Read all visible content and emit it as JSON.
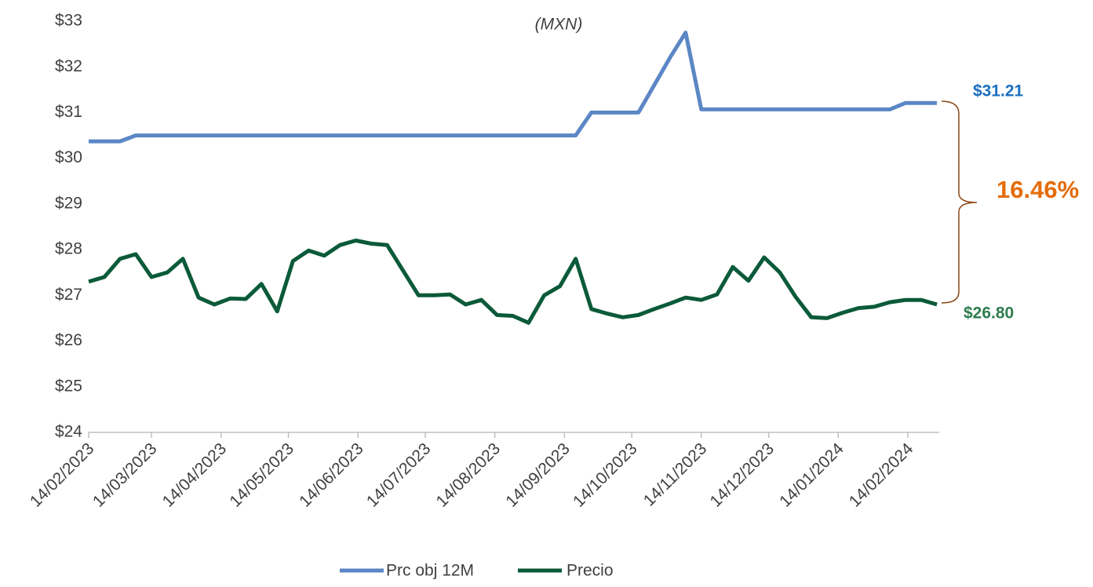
{
  "chart_data": {
    "type": "line",
    "title": "(MXN)",
    "x": [
      "2023-02-14",
      "2023-02-21",
      "2023-02-28",
      "2023-03-07",
      "2023-03-14",
      "2023-03-21",
      "2023-03-28",
      "2023-04-04",
      "2023-04-11",
      "2023-04-18",
      "2023-04-25",
      "2023-05-02",
      "2023-05-09",
      "2023-05-16",
      "2023-05-23",
      "2023-05-30",
      "2023-06-06",
      "2023-06-13",
      "2023-06-20",
      "2023-06-27",
      "2023-07-04",
      "2023-07-11",
      "2023-07-18",
      "2023-07-25",
      "2023-08-01",
      "2023-08-08",
      "2023-08-15",
      "2023-08-22",
      "2023-08-29",
      "2023-09-05",
      "2023-09-12",
      "2023-09-19",
      "2023-09-26",
      "2023-10-03",
      "2023-10-10",
      "2023-10-17",
      "2023-10-24",
      "2023-10-31",
      "2023-11-07",
      "2023-11-14",
      "2023-11-21",
      "2023-11-28",
      "2023-12-05",
      "2023-12-12",
      "2023-12-19",
      "2023-12-26",
      "2024-01-02",
      "2024-01-09",
      "2024-01-16",
      "2024-01-23",
      "2024-01-30",
      "2024-02-06",
      "2024-02-13",
      "2024-02-20",
      "2024-02-27"
    ],
    "series": [
      {
        "name": "Prc obj 12M",
        "color": "#5b87c5",
        "values": [
          30.37,
          30.37,
          30.37,
          30.5,
          30.5,
          30.5,
          30.5,
          30.5,
          30.5,
          30.5,
          30.5,
          30.5,
          30.5,
          30.5,
          30.5,
          30.5,
          30.5,
          30.5,
          30.5,
          30.5,
          30.5,
          30.5,
          30.5,
          30.5,
          30.5,
          30.5,
          30.5,
          30.5,
          30.5,
          30.5,
          30.5,
          30.5,
          31.0,
          31.0,
          31.0,
          31.0,
          31.6,
          32.2,
          32.75,
          31.07,
          31.07,
          31.07,
          31.07,
          31.07,
          31.07,
          31.07,
          31.07,
          31.07,
          31.07,
          31.07,
          31.07,
          31.07,
          31.21,
          31.21,
          31.21
        ]
      },
      {
        "name": "Precio",
        "color": "#0b5a3a",
        "values": [
          27.3,
          27.4,
          27.8,
          27.9,
          27.4,
          27.5,
          27.8,
          26.95,
          26.8,
          26.93,
          26.92,
          27.25,
          26.65,
          27.75,
          27.98,
          27.87,
          28.1,
          28.2,
          28.13,
          28.1,
          27.55,
          27.0,
          27.0,
          27.02,
          26.8,
          26.9,
          26.57,
          26.55,
          26.4,
          27.0,
          27.2,
          27.8,
          26.7,
          26.6,
          26.52,
          26.57,
          26.7,
          26.82,
          26.95,
          26.9,
          27.02,
          27.62,
          27.32,
          27.83,
          27.5,
          26.97,
          26.52,
          26.5,
          26.62,
          26.72,
          26.75,
          26.85,
          26.9,
          26.9,
          26.8
        ]
      }
    ],
    "xlim": [
      "2023-02-14",
      "2024-02-28"
    ],
    "xticks": [
      {
        "value": "2023-02-14",
        "label": "14/02/2023"
      },
      {
        "value": "2023-03-14",
        "label": "14/03/2023"
      },
      {
        "value": "2023-04-14",
        "label": "14/04/2023"
      },
      {
        "value": "2023-05-14",
        "label": "14/05/2023"
      },
      {
        "value": "2023-06-14",
        "label": "14/06/2023"
      },
      {
        "value": "2023-07-14",
        "label": "14/07/2023"
      },
      {
        "value": "2023-08-14",
        "label": "14/08/2023"
      },
      {
        "value": "2023-09-14",
        "label": "14/09/2023"
      },
      {
        "value": "2023-10-14",
        "label": "14/10/2023"
      },
      {
        "value": "2023-11-14",
        "label": "14/11/2023"
      },
      {
        "value": "2023-12-14",
        "label": "14/12/2023"
      },
      {
        "value": "2024-01-14",
        "label": "14/01/2024"
      },
      {
        "value": "2024-02-14",
        "label": "14/02/2024"
      }
    ],
    "ylim": [
      24,
      33
    ],
    "yticks": [
      {
        "value": 24,
        "label": "$24"
      },
      {
        "value": 25,
        "label": "$25"
      },
      {
        "value": 26,
        "label": "$26"
      },
      {
        "value": 27,
        "label": "$27"
      },
      {
        "value": 28,
        "label": "$28"
      },
      {
        "value": 29,
        "label": "$29"
      },
      {
        "value": 30,
        "label": "$30"
      },
      {
        "value": 31,
        "label": "$31"
      },
      {
        "value": 32,
        "label": "$32"
      },
      {
        "value": 33,
        "label": "$33"
      }
    ],
    "annotations": [
      {
        "text": "$31.21",
        "color": "#1a6fc0"
      },
      {
        "text": "$26.80",
        "color": "#2e7d4f"
      },
      {
        "text": "16.46%",
        "color": "#e46c0a"
      }
    ]
  }
}
